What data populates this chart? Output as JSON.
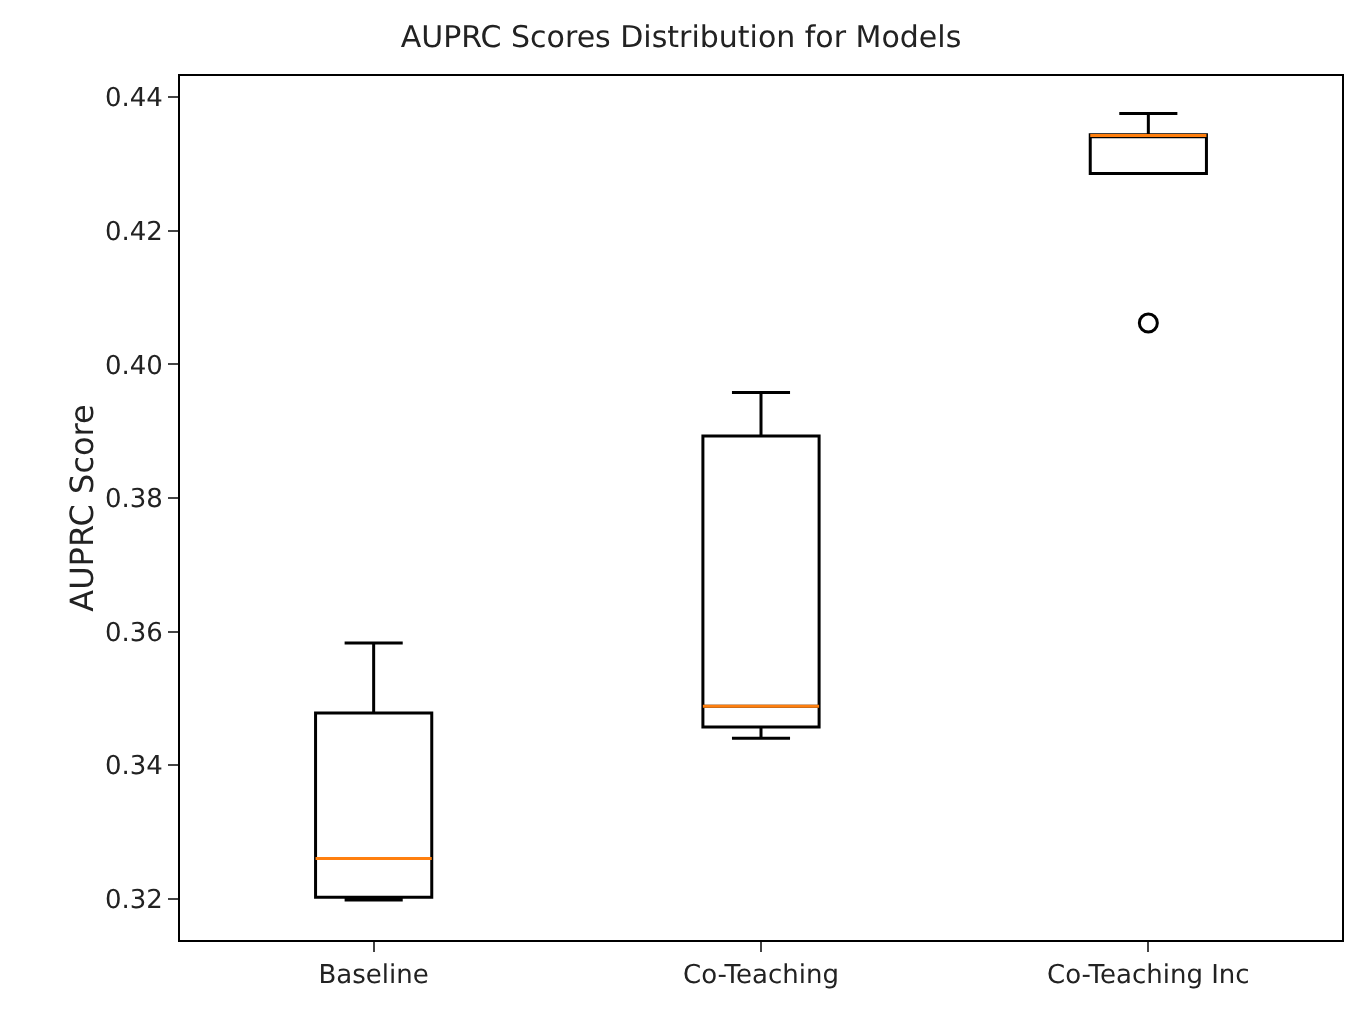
{
  "chart_data": {
    "type": "box",
    "title": "AUPRC Scores Distribution for Models",
    "ylabel": "AUPRC Score",
    "categories": [
      "Baseline",
      "Co-Teaching",
      "Co-Teaching Inc"
    ],
    "boxes": [
      {
        "low": 0.3198,
        "q1": 0.3202,
        "median": 0.326,
        "q3": 0.3478,
        "high": 0.3583
      },
      {
        "low": 0.344,
        "q1": 0.3457,
        "median": 0.3488,
        "q3": 0.3893,
        "high": 0.3958
      },
      {
        "low": 0.4286,
        "q1": 0.4286,
        "median": 0.4343,
        "q3": 0.4344,
        "high": 0.4376,
        "outliers": [
          0.4062
        ]
      }
    ],
    "color": "#000000",
    "ylim": [
      0.3138,
      0.4432
    ],
    "yticks": [
      0.32,
      0.34,
      0.36,
      0.38,
      {
        "value": 0.4,
        "label": "0.40"
      },
      0.42,
      0.44
    ],
    "grid": false
  }
}
